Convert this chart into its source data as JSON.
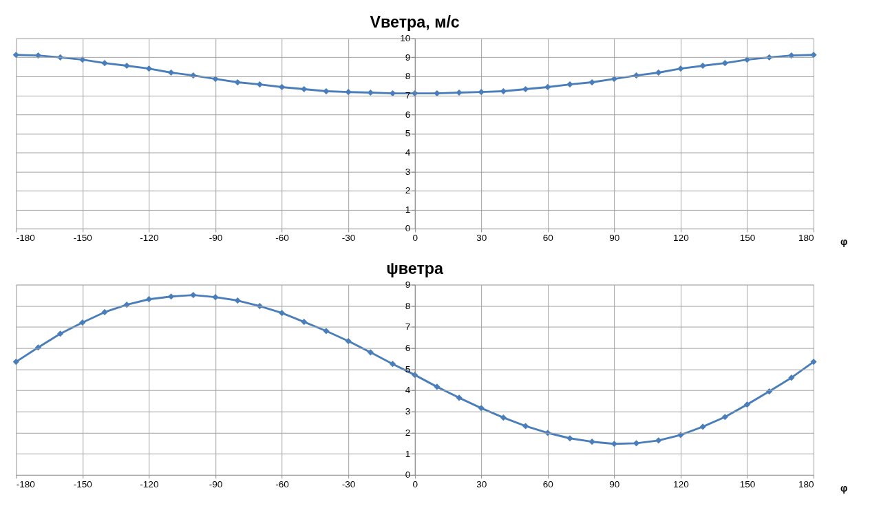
{
  "chart_data": [
    {
      "type": "line",
      "title": "Vветра, м/с",
      "xlabel": "φ",
      "x": [
        -180,
        -170,
        -160,
        -150,
        -140,
        -130,
        -120,
        -110,
        -100,
        -90,
        -80,
        -70,
        -60,
        -50,
        -40,
        -30,
        -20,
        -10,
        0,
        10,
        20,
        30,
        40,
        50,
        60,
        70,
        80,
        90,
        100,
        110,
        120,
        130,
        140,
        150,
        160,
        170,
        180
      ],
      "series": [
        {
          "color": "#4a7ebb",
          "values": [
            9.13,
            9.1,
            9.0,
            8.88,
            8.7,
            8.56,
            8.41,
            8.2,
            8.05,
            7.87,
            7.69,
            7.58,
            7.44,
            7.33,
            7.22,
            7.18,
            7.15,
            7.11,
            7.11,
            7.11,
            7.15,
            7.18,
            7.22,
            7.33,
            7.44,
            7.58,
            7.69,
            7.87,
            8.05,
            8.2,
            8.41,
            8.56,
            8.7,
            8.88,
            9.0,
            9.1,
            9.13
          ]
        }
      ],
      "xlim": [
        -180,
        180
      ],
      "xticks": [
        -180,
        -150,
        -120,
        -90,
        -60,
        -30,
        0,
        30,
        60,
        90,
        120,
        150,
        180
      ],
      "ylim": [
        0,
        10
      ],
      "yticks": [
        0,
        1,
        2,
        3,
        4,
        5,
        6,
        7,
        8,
        9,
        10
      ],
      "grid": true,
      "marker": "diamond",
      "line_style": "solid"
    },
    {
      "type": "line",
      "title": "ψветра",
      "xlabel": "φ",
      "x": [
        -180,
        -170,
        -160,
        -150,
        -140,
        -130,
        -120,
        -110,
        -100,
        -90,
        -80,
        -70,
        -60,
        -50,
        -40,
        -30,
        -20,
        -10,
        0,
        10,
        20,
        30,
        40,
        50,
        60,
        70,
        80,
        90,
        100,
        110,
        120,
        130,
        140,
        150,
        160,
        170,
        180
      ],
      "series": [
        {
          "color": "#4a7ebb",
          "values": [
            5.35,
            6.03,
            6.68,
            7.21,
            7.7,
            8.05,
            8.31,
            8.44,
            8.51,
            8.41,
            8.25,
            7.99,
            7.66,
            7.24,
            6.81,
            6.33,
            5.8,
            5.25,
            4.73,
            4.17,
            3.65,
            3.16,
            2.71,
            2.31,
            1.99,
            1.73,
            1.57,
            1.47,
            1.5,
            1.63,
            1.89,
            2.28,
            2.74,
            3.33,
            3.95,
            4.6,
            5.35
          ]
        }
      ],
      "xlim": [
        -180,
        180
      ],
      "xticks": [
        -180,
        -150,
        -120,
        -90,
        -60,
        -30,
        0,
        30,
        60,
        90,
        120,
        150,
        180
      ],
      "ylim": [
        0,
        9
      ],
      "yticks": [
        0,
        1,
        2,
        3,
        4,
        5,
        6,
        7,
        8,
        9
      ],
      "grid": true,
      "marker": "diamond",
      "line_style": "solid"
    }
  ]
}
